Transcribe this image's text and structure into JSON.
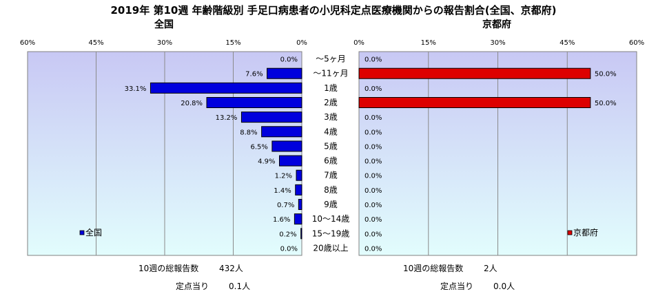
{
  "title": "2019年 第10週 年齢階級別 手足口病患者の小児科定点医療機関からの報告割合(全国、京都府)",
  "chart_data": {
    "type": "bar",
    "categories": [
      "～5ヶ月",
      "～11ヶ月",
      "1歳",
      "2歳",
      "3歳",
      "4歳",
      "5歳",
      "6歳",
      "7歳",
      "8歳",
      "9歳",
      "10～14歳",
      "15～19歳",
      "20歳以上"
    ],
    "axis_ticks": [
      "0%",
      "15%",
      "30%",
      "45%",
      "60%"
    ],
    "xlim": [
      0,
      60
    ],
    "grid": true,
    "panels": [
      {
        "name": "全国",
        "legend": "全国",
        "color": "#0000dd",
        "direction": "left",
        "values": [
          0.0,
          7.6,
          33.1,
          20.8,
          13.2,
          8.8,
          6.5,
          4.9,
          1.2,
          1.4,
          0.7,
          1.6,
          0.2,
          0.0
        ],
        "labels": [
          "0.0%",
          "7.6%",
          "33.1%",
          "20.8%",
          "13.2%",
          "8.8%",
          "6.5%",
          "4.9%",
          "1.2%",
          "1.4%",
          "0.7%",
          "1.6%",
          "0.2%",
          "0.0%"
        ],
        "footer": {
          "total_label": "10週の総報告数",
          "total_value": "432人",
          "per_label": "定点当り",
          "per_value": "0.1人"
        }
      },
      {
        "name": "京都府",
        "legend": "京都府",
        "color": "#dd0000",
        "direction": "right",
        "values": [
          0.0,
          50.0,
          0.0,
          50.0,
          0.0,
          0.0,
          0.0,
          0.0,
          0.0,
          0.0,
          0.0,
          0.0,
          0.0,
          0.0
        ],
        "labels": [
          "0.0%",
          "50.0%",
          "0.0%",
          "50.0%",
          "0.0%",
          "0.0%",
          "0.0%",
          "0.0%",
          "0.0%",
          "0.0%",
          "0.0%",
          "0.0%",
          "0.0%",
          "0.0%"
        ],
        "footer": {
          "total_label": "10週の総報告数",
          "total_value": "2人",
          "per_label": "定点当り",
          "per_value": "0.0人"
        }
      }
    ]
  }
}
